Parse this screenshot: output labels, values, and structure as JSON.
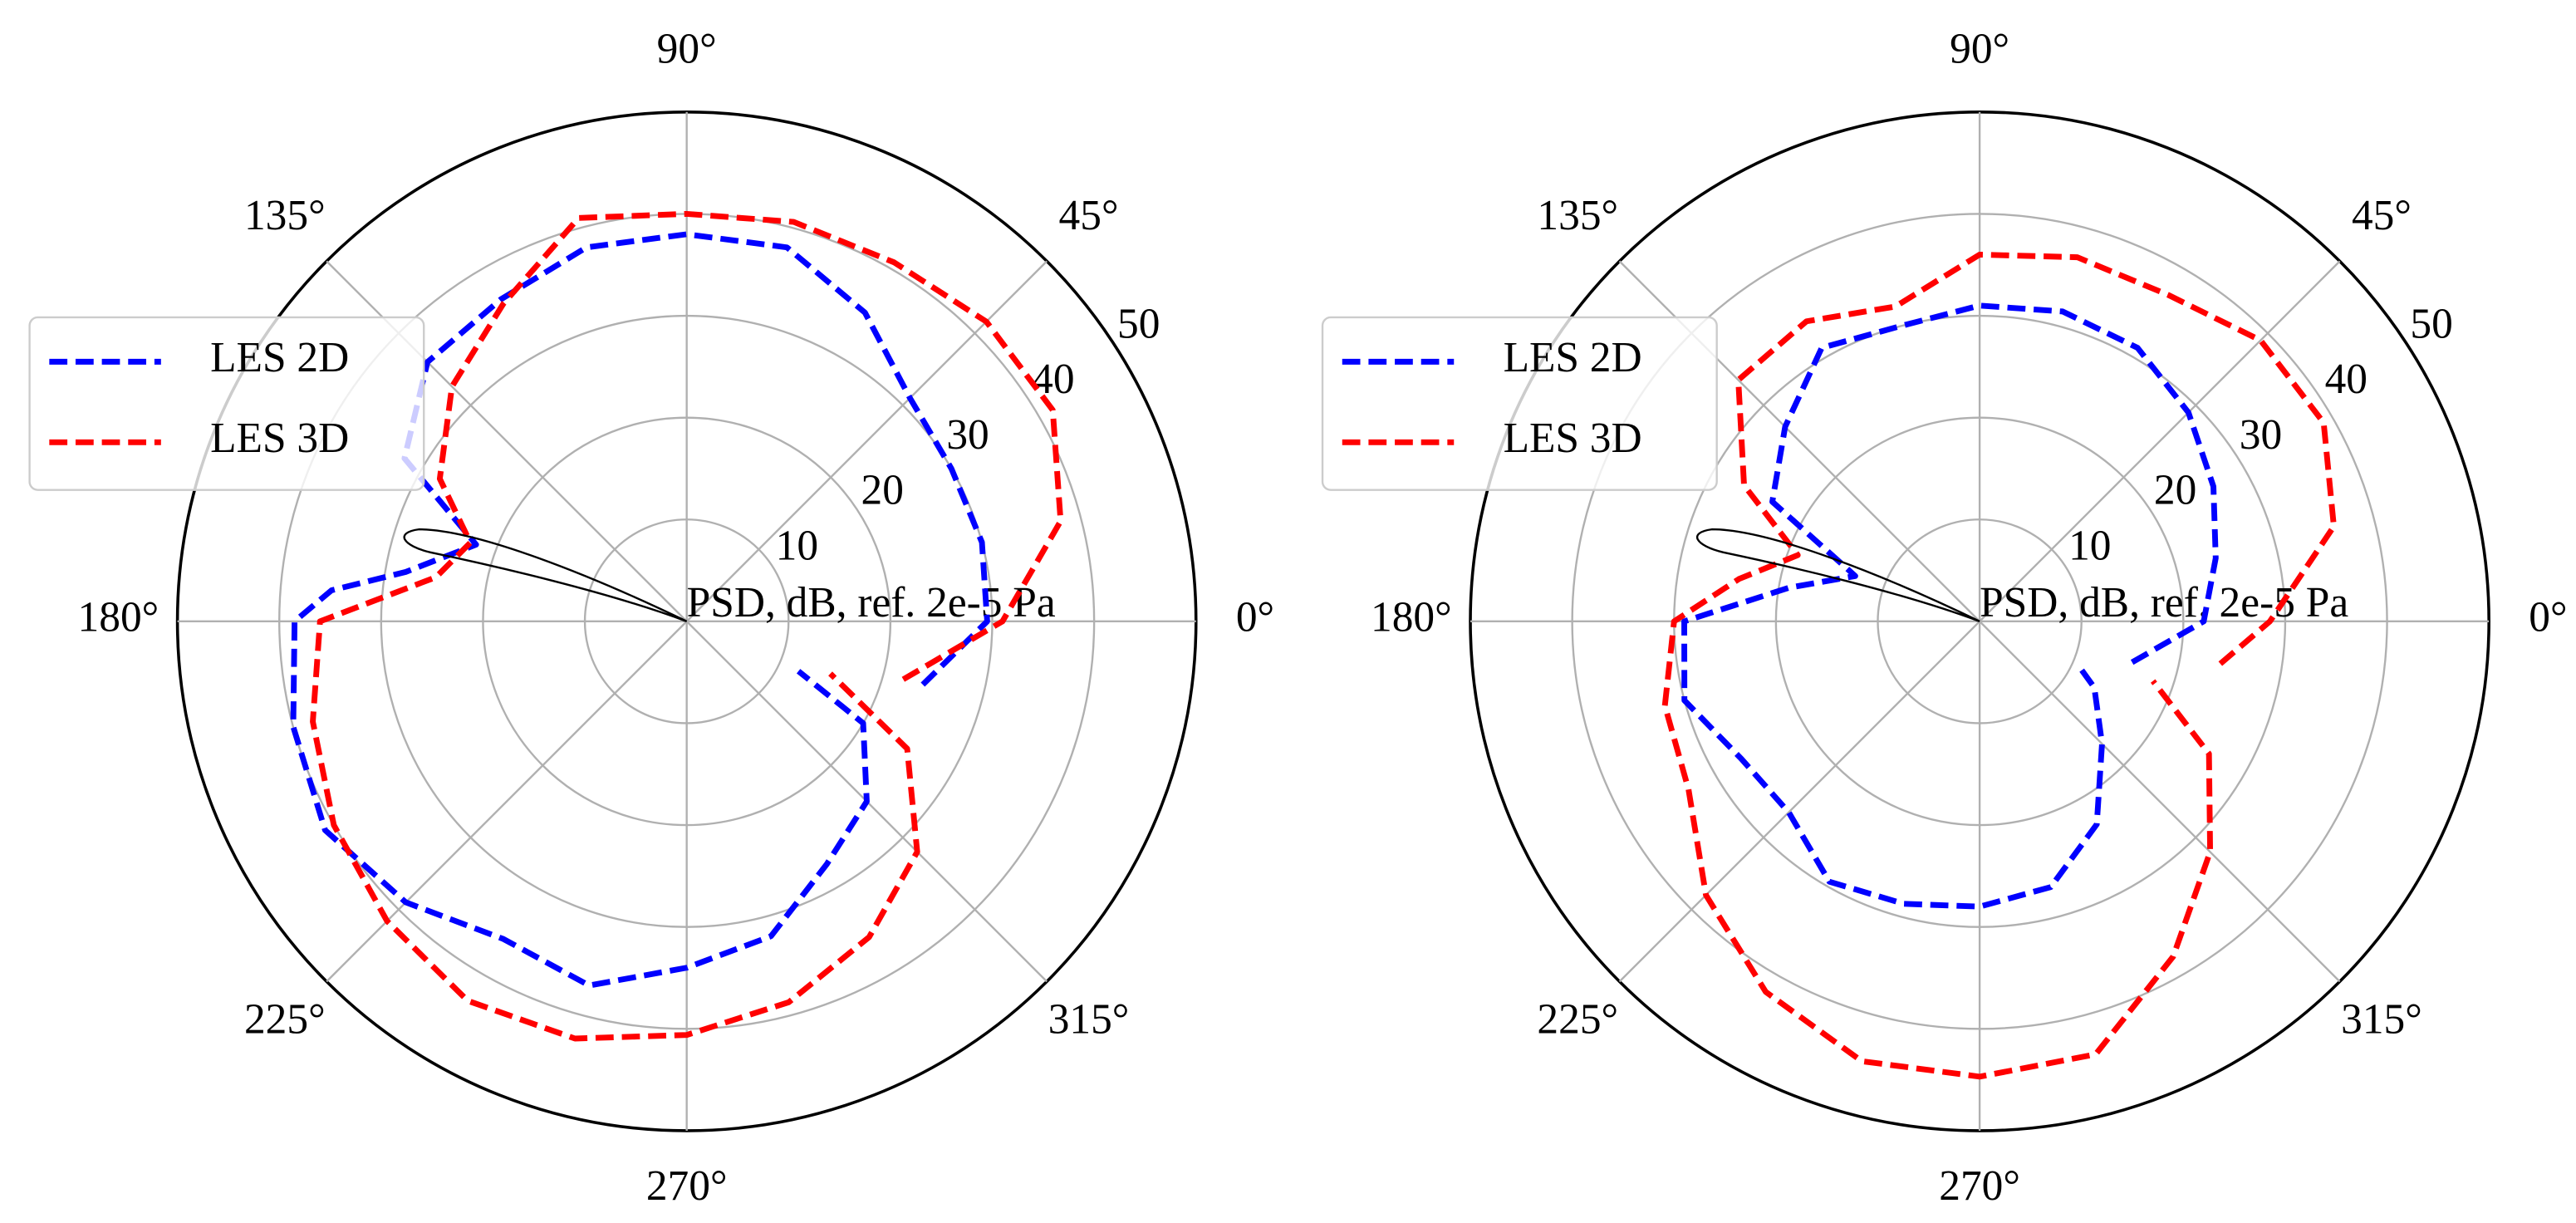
{
  "chart_data": [
    {
      "type": "polar",
      "r_label": "PSD, dB, ref. 2e-5 Pa",
      "rlim": [
        0,
        50
      ],
      "rticks": [
        10,
        20,
        30,
        40,
        50
      ],
      "xticks": [
        {
          "value": 0,
          "label": "0°"
        },
        {
          "value": 45,
          "label": "45°"
        },
        {
          "value": 90,
          "label": "90°"
        },
        {
          "value": 135,
          "label": "135°"
        },
        {
          "value": 180,
          "label": "180°"
        },
        {
          "value": 225,
          "label": "225°"
        },
        {
          "value": 270,
          "label": "270°"
        },
        {
          "value": 315,
          "label": "315°"
        }
      ],
      "grid": true,
      "legend": "upper left",
      "series": [
        {
          "name": "LES 2D",
          "color": "#0000ff",
          "x": [
            345,
            0,
            15,
            30,
            45,
            60,
            75,
            90,
            105,
            120,
            135,
            150,
            160,
            170,
            175,
            180,
            195,
            210,
            225,
            240,
            255,
            270,
            285,
            300,
            315,
            330,
            336
          ],
          "values": [
            24,
            29.5,
            30,
            30,
            31,
            35,
            38,
            38,
            38,
            36.5,
            36,
            32,
            22,
            28,
            35,
            38.5,
            40,
            41,
            39,
            36,
            37,
            34,
            32,
            27.5,
            25,
            20,
            12
          ]
        },
        {
          "name": "LES 3D",
          "color": "#ff0000",
          "x": [
            345,
            0,
            15,
            30,
            45,
            60,
            75,
            90,
            105,
            120,
            135,
            150,
            160,
            170,
            180,
            195,
            210,
            225,
            240,
            255,
            270,
            285,
            300,
            315,
            330,
            340
          ],
          "values": [
            22,
            31,
            38,
            41.5,
            41.6,
            40.7,
            40.6,
            40,
            41,
            36,
            32.6,
            28,
            22.6,
            25,
            36,
            38,
            40,
            41.6,
            43,
            42.4,
            40.6,
            38.7,
            35.8,
            32,
            25,
            15
          ]
        }
      ]
    },
    {
      "type": "polar",
      "r_label": "PSD, dB, ref. 2e-5 Pa",
      "rlim": [
        0,
        50
      ],
      "rticks": [
        10,
        20,
        30,
        40,
        50
      ],
      "xticks": [
        {
          "value": 0,
          "label": "0°"
        },
        {
          "value": 45,
          "label": "45°"
        },
        {
          "value": 90,
          "label": "90°"
        },
        {
          "value": 135,
          "label": "135°"
        },
        {
          "value": 180,
          "label": "180°"
        },
        {
          "value": 225,
          "label": "225°"
        },
        {
          "value": 270,
          "label": "270°"
        },
        {
          "value": 315,
          "label": "315°"
        }
      ],
      "grid": true,
      "legend": "upper left",
      "series": [
        {
          "name": "LES 2D",
          "color": "#0000ff",
          "x": [
            345,
            0,
            15,
            30,
            45,
            60,
            75,
            90,
            105,
            120,
            135,
            150,
            160,
            170,
            180,
            195,
            210,
            225,
            240,
            255,
            270,
            285,
            300,
            315,
            330,
            336
          ],
          "values": [
            15.5,
            22,
            24,
            26.5,
            29,
            31,
            31.5,
            31,
            30,
            31,
            27,
            23.5,
            13,
            19,
            29,
            30,
            27,
            26.5,
            29.5,
            28.7,
            28,
            27,
            23,
            17,
            13,
            10.6
          ]
        },
        {
          "name": "LES 3D",
          "color": "#ff0000",
          "x": [
            350,
            0,
            15,
            30,
            45,
            60,
            75,
            90,
            105,
            120,
            135,
            150,
            160,
            170,
            180,
            195,
            210,
            225,
            240,
            255,
            270,
            285,
            300,
            315,
            330,
            341
          ],
          "values": [
            24,
            28.5,
            36,
            39,
            39,
            37,
            37,
            36,
            32,
            34,
            33.5,
            26.7,
            19,
            24,
            30,
            32,
            33,
            38,
            42,
            44.7,
            44.7,
            44,
            38,
            32,
            26,
            18
          ]
        }
      ]
    }
  ]
}
